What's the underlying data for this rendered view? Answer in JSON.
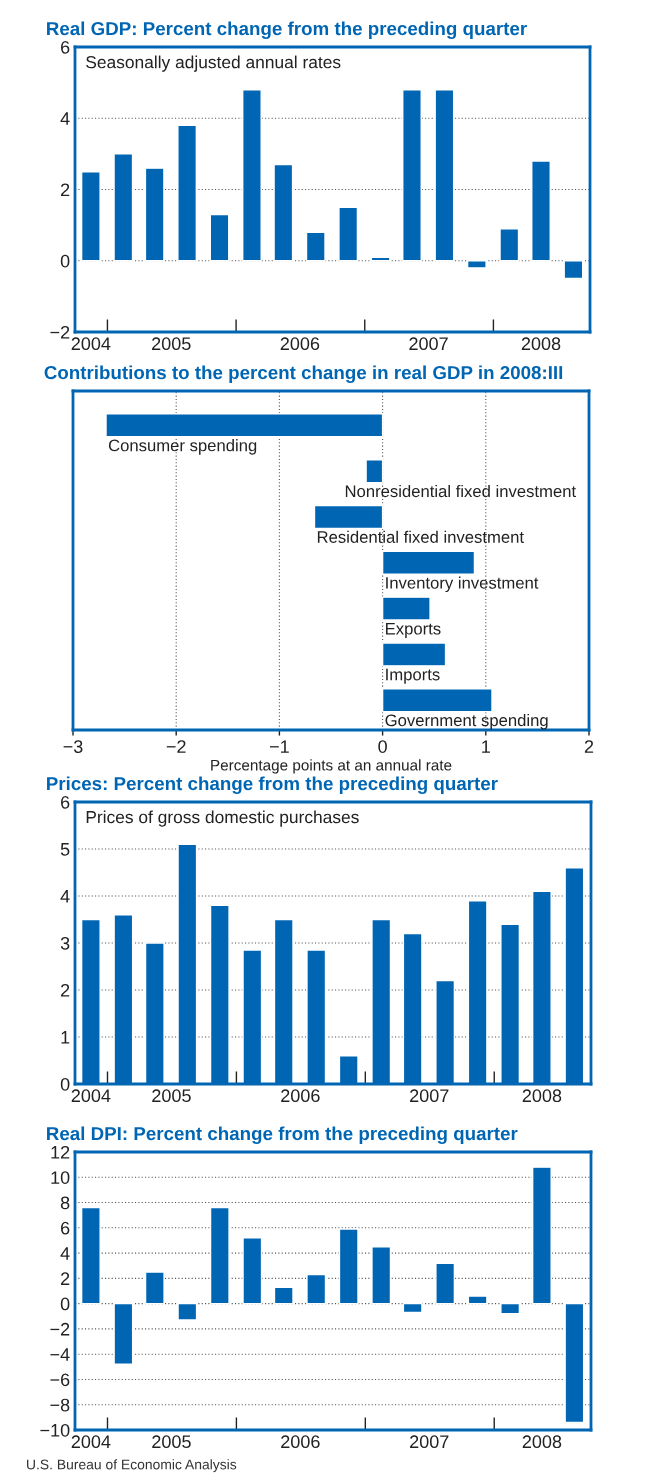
{
  "chart_data": [
    {
      "type": "bar",
      "title": "Real GDP: Percent change from the preceding quarter",
      "annotations": [
        "Seasonally adjusted annual rates"
      ],
      "x": [
        "2004-11-15",
        "2005-02-15",
        "2005-05-15",
        "2005-08-15",
        "2005-11-15",
        "2006-02-15",
        "2006-05-15",
        "2006-08-15",
        "2006-11-15",
        "2007-02-15",
        "2007-05-15",
        "2007-08-15",
        "2007-11-15",
        "2008-02-15",
        "2008-05-15",
        "2008-08-15"
      ],
      "values": [
        2.5,
        3.0,
        2.6,
        3.8,
        1.3,
        4.8,
        2.7,
        0.8,
        1.5,
        0.1,
        4.8,
        4.8,
        -0.2,
        0.9,
        2.8,
        -0.5
      ],
      "color": "#0066b3",
      "xlim": [
        "2004-10-01",
        "2008-10-01"
      ],
      "xticks": [
        {
          "value": "2004-11-15",
          "label": "2004"
        },
        {
          "value": "2005-01-01",
          "label": null
        },
        {
          "value": "2005-07-01",
          "label": "2005"
        },
        {
          "value": "2006-01-01",
          "label": null
        },
        {
          "value": "2006-07-01",
          "label": "2006"
        },
        {
          "value": "2007-01-01",
          "label": null
        },
        {
          "value": "2007-07-01",
          "label": "2007"
        },
        {
          "value": "2008-01-01",
          "label": null
        },
        {
          "value": "2008-05-15",
          "label": "2008"
        }
      ],
      "ylim": [
        -2,
        6
      ],
      "yticks": [
        {
          "value": -2,
          "label": "−2"
        },
        0,
        2,
        4,
        6
      ],
      "grid": "y"
    },
    {
      "type": "bar",
      "orientation": "horizontal",
      "title": "Contributions to the percent change in real GDP in 2008:III",
      "xlabel": "Percentage points at an annual rate",
      "categories": [
        "Consumer spending",
        "Nonresidential fixed investment",
        "Residential fixed investment",
        "Inventory investment",
        "Exports",
        "Imports",
        "Government spending"
      ],
      "values": [
        -2.68,
        -0.16,
        -0.66,
        0.89,
        0.46,
        0.61,
        1.06
      ],
      "color": "#0066b3",
      "xlim": [
        -3,
        2
      ],
      "xticks": [
        {
          "value": -3,
          "label": "−3"
        },
        {
          "value": -2,
          "label": "−2"
        },
        {
          "value": -1,
          "label": "−1"
        },
        0,
        1,
        2
      ],
      "grid": "x"
    },
    {
      "type": "bar",
      "title": "Prices: Percent change from the preceding quarter",
      "annotations": [
        "Prices of gross domestic purchases"
      ],
      "x": [
        "2004-11-15",
        "2005-02-15",
        "2005-05-15",
        "2005-08-15",
        "2005-11-15",
        "2006-02-15",
        "2006-05-15",
        "2006-08-15",
        "2006-11-15",
        "2007-02-15",
        "2007-05-15",
        "2007-08-15",
        "2007-11-15",
        "2008-02-15",
        "2008-05-15",
        "2008-08-15"
      ],
      "values": [
        3.5,
        3.6,
        3.0,
        5.1,
        3.8,
        2.85,
        3.5,
        2.85,
        0.6,
        3.5,
        3.2,
        2.2,
        3.9,
        3.4,
        4.1,
        4.6
      ],
      "color": "#0066b3",
      "xlim": [
        "2004-10-01",
        "2008-10-01"
      ],
      "xticks": [
        {
          "value": "2004-11-15",
          "label": "2004"
        },
        {
          "value": "2005-01-01",
          "label": null
        },
        {
          "value": "2005-07-01",
          "label": "2005"
        },
        {
          "value": "2006-01-01",
          "label": null
        },
        {
          "value": "2006-07-01",
          "label": "2006"
        },
        {
          "value": "2007-01-01",
          "label": null
        },
        {
          "value": "2007-07-01",
          "label": "2007"
        },
        {
          "value": "2008-01-01",
          "label": null
        },
        {
          "value": "2008-05-15",
          "label": "2008"
        }
      ],
      "ylim": [
        0,
        6
      ],
      "yticks": [
        0,
        1,
        2,
        3,
        4,
        5,
        6
      ],
      "grid": "y"
    },
    {
      "type": "bar",
      "title": "Real DPI: Percent change from the preceding quarter",
      "annotations": [
        "U.S. Bureau of Economic Analysis"
      ],
      "x": [
        "2004-11-15",
        "2005-02-15",
        "2005-05-15",
        "2005-08-15",
        "2005-11-15",
        "2006-02-15",
        "2006-05-15",
        "2006-08-15",
        "2006-11-15",
        "2007-02-15",
        "2007-05-15",
        "2007-08-15",
        "2007-11-15",
        "2008-02-15",
        "2008-05-15",
        "2008-08-15"
      ],
      "values": [
        7.6,
        -4.8,
        2.5,
        -1.3,
        7.6,
        5.2,
        1.3,
        2.3,
        5.9,
        4.5,
        -0.7,
        3.2,
        0.6,
        -0.8,
        10.8,
        -9.4
      ],
      "color": "#0066b3",
      "xlim": [
        "2004-10-01",
        "2008-10-01"
      ],
      "xticks": [
        {
          "value": "2004-11-15",
          "label": "2004"
        },
        {
          "value": "2005-01-01",
          "label": null
        },
        {
          "value": "2005-07-01",
          "label": "2005"
        },
        {
          "value": "2006-01-01",
          "label": null
        },
        {
          "value": "2006-07-01",
          "label": "2006"
        },
        {
          "value": "2007-01-01",
          "label": null
        },
        {
          "value": "2007-07-01",
          "label": "2007"
        },
        {
          "value": "2008-01-01",
          "label": null
        },
        {
          "value": "2008-05-15",
          "label": "2008"
        }
      ],
      "ylim": [
        -10,
        12
      ],
      "yticks": [
        {
          "value": -10,
          "label": "−10"
        },
        {
          "value": -8,
          "label": "−8"
        },
        {
          "value": -6,
          "label": "−6"
        },
        {
          "value": -4,
          "label": "−4"
        },
        {
          "value": -2,
          "label": "−2"
        },
        0,
        2,
        4,
        6,
        8,
        10,
        12
      ],
      "grid": "y"
    }
  ]
}
